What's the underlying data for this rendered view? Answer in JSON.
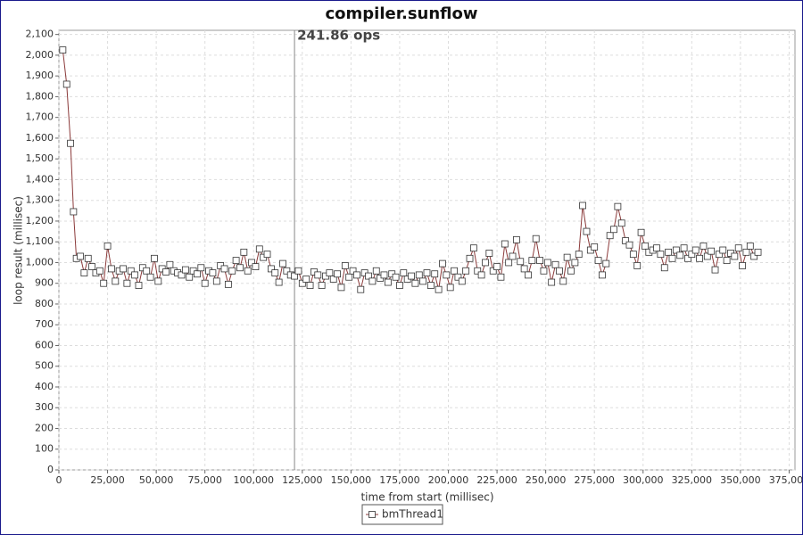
{
  "chart_data": {
    "type": "line",
    "title": "compiler.sunflow",
    "x_label": "time from start (millisec)",
    "y_label": "loop result (millisec)",
    "annotation": "241.86 ops",
    "marker_x": 121000,
    "xlim": [
      0,
      378000
    ],
    "ylim": [
      0,
      2120
    ],
    "grid": true,
    "legend": "bottom",
    "xticks": [
      0,
      {
        "value": 25000,
        "label": "25,000"
      },
      {
        "value": 50000,
        "label": "50,000"
      },
      {
        "value": 75000,
        "label": "75,000"
      },
      {
        "value": 100000,
        "label": "100,000"
      },
      {
        "value": 125000,
        "label": "125,000"
      },
      {
        "value": 150000,
        "label": "150,000"
      },
      {
        "value": 175000,
        "label": "175,000"
      },
      {
        "value": 200000,
        "label": "200,000"
      },
      {
        "value": 225000,
        "label": "225,000"
      },
      {
        "value": 250000,
        "label": "250,000"
      },
      {
        "value": 275000,
        "label": "275,000"
      },
      {
        "value": 300000,
        "label": "300,000"
      },
      {
        "value": 325000,
        "label": "325,000"
      },
      {
        "value": 350000,
        "label": "350,000"
      },
      {
        "value": 375000,
        "label": "375,000"
      }
    ],
    "yticks": [
      0,
      100,
      200,
      300,
      400,
      500,
      600,
      700,
      800,
      900,
      {
        "value": 1000,
        "label": "1,000"
      },
      {
        "value": 1100,
        "label": "1,100"
      },
      {
        "value": 1200,
        "label": "1,200"
      },
      {
        "value": 1300,
        "label": "1,300"
      },
      {
        "value": 1400,
        "label": "1,400"
      },
      {
        "value": 1500,
        "label": "1,500"
      },
      {
        "value": 1600,
        "label": "1,600"
      },
      {
        "value": 1700,
        "label": "1,700"
      },
      {
        "value": 1800,
        "label": "1,800"
      },
      {
        "value": 1900,
        "label": "1,900"
      },
      {
        "value": 2000,
        "label": "2,000"
      },
      {
        "value": 2100,
        "label": "2,100"
      }
    ],
    "x": [
      2000,
      4000,
      6000,
      7500,
      9000,
      11000,
      13000,
      15000,
      17000,
      19000,
      21000,
      23000,
      25000,
      27000,
      29000,
      31000,
      33000,
      35000,
      37000,
      39000,
      41000,
      43000,
      45000,
      47000,
      49000,
      51000,
      53000,
      55000,
      57000,
      59000,
      61000,
      63000,
      65000,
      67000,
      69000,
      71000,
      73000,
      75000,
      77000,
      79000,
      81000,
      83000,
      85000,
      87000,
      89000,
      91000,
      93000,
      95000,
      97000,
      99000,
      101000,
      103000,
      105000,
      107000,
      109000,
      111000,
      113000,
      115000,
      117000,
      119000,
      121000,
      123000,
      125000,
      127000,
      129000,
      131000,
      133000,
      135000,
      137000,
      139000,
      141000,
      143000,
      145000,
      147000,
      149000,
      151000,
      153000,
      155000,
      157000,
      159000,
      161000,
      163000,
      165000,
      167000,
      169000,
      171000,
      173000,
      175000,
      177000,
      179000,
      181000,
      183000,
      185000,
      187000,
      189000,
      191000,
      193000,
      195000,
      197000,
      199000,
      201000,
      203000,
      205000,
      207000,
      209000,
      211000,
      213000,
      215000,
      217000,
      219000,
      221000,
      223000,
      225000,
      227000,
      229000,
      231000,
      233000,
      235000,
      237000,
      239000,
      241000,
      243000,
      245000,
      247000,
      249000,
      251000,
      253000,
      255000,
      257000,
      259000,
      261000,
      263000,
      265000,
      267000,
      269000,
      271000,
      273000,
      275000,
      277000,
      279000,
      281000,
      283000,
      285000,
      287000,
      289000,
      291000,
      293000,
      295000,
      297000,
      299000,
      301000,
      303000,
      305000,
      307000,
      309000,
      311000,
      313000,
      315000,
      317000,
      319000,
      321000,
      323000,
      325000,
      327000,
      329000,
      331000,
      333000,
      335000,
      337000,
      339000,
      341000,
      343000,
      345000,
      347000,
      349000,
      351000,
      353000,
      355000,
      357000,
      359000
    ],
    "series": [
      {
        "name": "bmThread1",
        "color": "#8b3a3a",
        "values": [
          2025,
          1860,
          1575,
          1245,
          1020,
          1030,
          950,
          1020,
          980,
          950,
          960,
          900,
          1080,
          970,
          910,
          960,
          970,
          900,
          960,
          940,
          890,
          975,
          960,
          930,
          1020,
          910,
          970,
          955,
          990,
          960,
          950,
          940,
          965,
          930,
          960,
          945,
          975,
          900,
          960,
          950,
          910,
          985,
          970,
          895,
          960,
          1010,
          975,
          1050,
          960,
          1000,
          980,
          1065,
          1025,
          1040,
          970,
          950,
          905,
          995,
          960,
          940,
          935,
          960,
          900,
          920,
          890,
          955,
          940,
          890,
          935,
          950,
          920,
          945,
          880,
          985,
          930,
          960,
          940,
          870,
          950,
          935,
          910,
          960,
          925,
          940,
          905,
          945,
          930,
          890,
          950,
          920,
          935,
          900,
          940,
          910,
          950,
          890,
          945,
          870,
          995,
          940,
          880,
          960,
          930,
          910,
          960,
          1020,
          1070,
          960,
          940,
          1000,
          1045,
          960,
          980,
          930,
          1090,
          1000,
          1030,
          1110,
          1005,
          970,
          940,
          1010,
          1115,
          1010,
          960,
          1000,
          905,
          990,
          960,
          910,
          1025,
          960,
          1000,
          1040,
          1275,
          1150,
          1060,
          1075,
          1010,
          940,
          995,
          1130,
          1160,
          1270,
          1190,
          1105,
          1085,
          1040,
          985,
          1145,
          1080,
          1050,
          1060,
          1070,
          1040,
          975,
          1050,
          1020,
          1060,
          1035,
          1070,
          1020,
          1040,
          1060,
          1020,
          1080,
          1030,
          1055,
          965,
          1040,
          1060,
          1010,
          1045,
          1030,
          1070,
          985,
          1050,
          1080,
          1030,
          1050
        ]
      }
    ]
  }
}
